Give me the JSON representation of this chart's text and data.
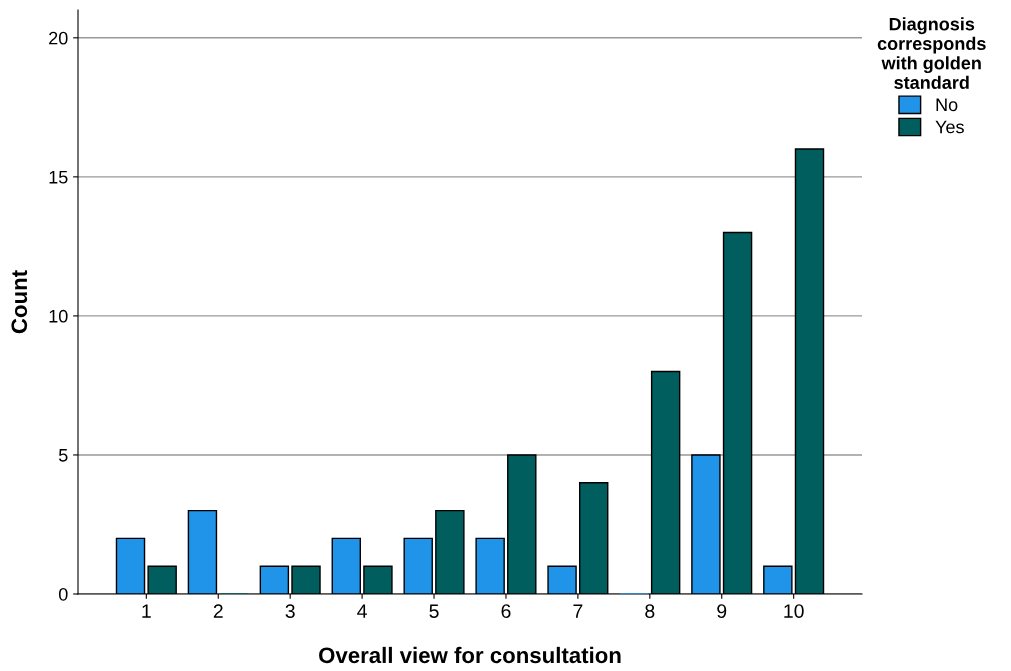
{
  "chart_data": {
    "type": "bar",
    "xlabel": "Overall view for consultation",
    "ylabel": "Count",
    "legend_title": "Diagnosis\ncorresponds\nwith golden\nstandard",
    "categories": [
      "1",
      "2",
      "3",
      "4",
      "5",
      "6",
      "7",
      "8",
      "9",
      "10"
    ],
    "series": [
      {
        "name": "No",
        "color": "#1f94e8",
        "values": [
          2,
          3,
          1,
          2,
          2,
          2,
          1,
          0,
          5,
          1
        ]
      },
      {
        "name": "Yes",
        "color": "#005e5e",
        "values": [
          1,
          0,
          1,
          1,
          3,
          5,
          4,
          8,
          13,
          16
        ]
      }
    ],
    "ylim": [
      0,
      21
    ],
    "yticks": [
      0,
      5,
      10,
      15,
      20
    ],
    "grid": "y",
    "legend": "top right"
  }
}
